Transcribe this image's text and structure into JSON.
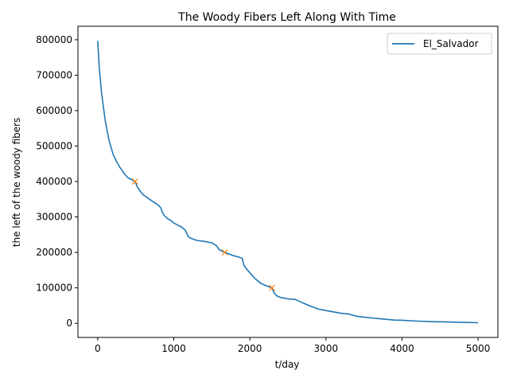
{
  "chart_data": {
    "type": "line",
    "title": "The Woody Fibers Left Along With Time",
    "xlabel": "t/day",
    "ylabel": "the left of the woody fibers",
    "xlim": [
      -260,
      5260
    ],
    "ylim": [
      -40000,
      838000
    ],
    "xticks": [
      0,
      1000,
      2000,
      3000,
      4000,
      5000
    ],
    "yticks": [
      0,
      100000,
      200000,
      300000,
      400000,
      500000,
      600000,
      700000,
      800000
    ],
    "grid": false,
    "legend": {
      "position": "top-right",
      "entries": [
        "El_Salvador"
      ]
    },
    "colors": {
      "series": "#1f77b4",
      "markers": "#ff7f0e"
    },
    "series": [
      {
        "name": "El_Salvador",
        "x": [
          0,
          20,
          50,
          100,
          150,
          200,
          250,
          300,
          350,
          400,
          450,
          490,
          520,
          560,
          600,
          650,
          700,
          750,
          800,
          830,
          850,
          880,
          920,
          960,
          1000,
          1050,
          1100,
          1150,
          1190,
          1220,
          1250,
          1300,
          1400,
          1500,
          1560,
          1600,
          1640,
          1670,
          1720,
          1780,
          1850,
          1900,
          1920,
          1950,
          2000,
          2050,
          2100,
          2150,
          2200,
          2250,
          2290,
          2320,
          2350,
          2400,
          2500,
          2600,
          2700,
          2800,
          2900,
          3000,
          3100,
          3200,
          3300,
          3400,
          3500,
          3600,
          3700,
          3800,
          3900,
          4000,
          4200,
          4400,
          4600,
          4800,
          5000
        ],
        "y": [
          797000,
          720000,
          650000,
          570000,
          515000,
          478000,
          455000,
          437000,
          422000,
          410000,
          405000,
          400000,
          385000,
          372000,
          362000,
          355000,
          347000,
          340000,
          333000,
          325000,
          312000,
          303000,
          295000,
          290000,
          283000,
          277000,
          272000,
          263000,
          245000,
          240000,
          238000,
          234000,
          231000,
          227000,
          219000,
          207000,
          203000,
          200000,
          196000,
          191000,
          187000,
          183000,
          165000,
          155000,
          142000,
          130000,
          120000,
          112000,
          107000,
          103000,
          100000,
          85000,
          78000,
          73000,
          69000,
          67000,
          57000,
          48000,
          40000,
          36000,
          32000,
          28000,
          26000,
          20000,
          17000,
          15000,
          13000,
          11000,
          9000,
          8500,
          6000,
          4500,
          3500,
          2500,
          1500
        ]
      }
    ],
    "markers": {
      "x": [
        490,
        1670,
        2290
      ],
      "y": [
        400000,
        200000,
        100000
      ]
    }
  }
}
